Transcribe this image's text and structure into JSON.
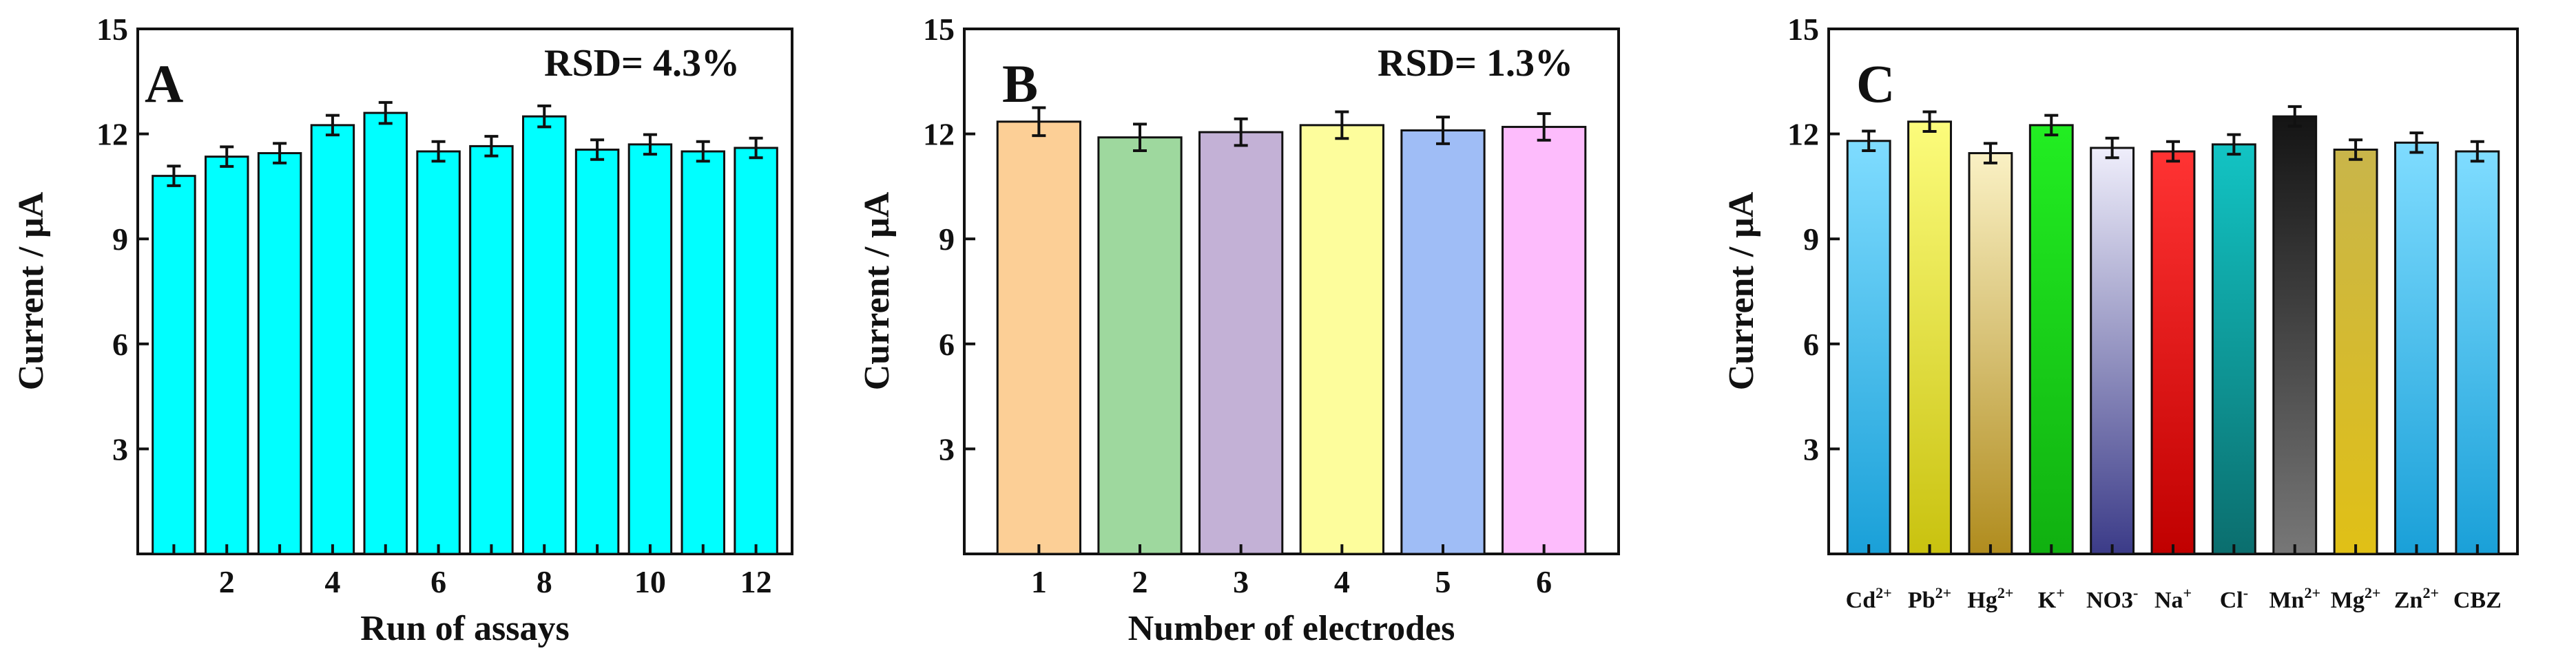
{
  "chart_data": [
    {
      "type": "bar",
      "panel_label": "A",
      "annotation": "RSD= 4.3%",
      "xlabel": "Run of assays",
      "ylabel": "Current / μA",
      "ylim": [
        0,
        15
      ],
      "yticks": [
        3,
        6,
        9,
        12,
        15
      ],
      "categories": [
        "1",
        "2",
        "3",
        "4",
        "5",
        "6",
        "7",
        "8",
        "9",
        "10",
        "11",
        "12"
      ],
      "xtick_labels": [
        "",
        "2",
        "",
        "4",
        "",
        "6",
        "",
        "8",
        "",
        "10",
        "",
        "12"
      ],
      "values": [
        10.8,
        11.35,
        11.45,
        12.25,
        12.6,
        11.5,
        11.65,
        12.5,
        11.55,
        11.7,
        11.5,
        11.6
      ],
      "errors": [
        0.28,
        0.28,
        0.28,
        0.28,
        0.3,
        0.28,
        0.28,
        0.3,
        0.28,
        0.28,
        0.28,
        0.28
      ],
      "colors": [
        "#00ffff",
        "#00ffff",
        "#00ffff",
        "#00ffff",
        "#00ffff",
        "#00ffff",
        "#00ffff",
        "#00ffff",
        "#00ffff",
        "#00ffff",
        "#00ffff",
        "#00ffff"
      ]
    },
    {
      "type": "bar",
      "panel_label": "B",
      "annotation": "RSD= 1.3%",
      "xlabel": "Number of electrodes",
      "ylabel": "Current / μA",
      "ylim": [
        0,
        15
      ],
      "yticks": [
        3,
        6,
        9,
        12,
        15
      ],
      "categories": [
        "1",
        "2",
        "3",
        "4",
        "5",
        "6"
      ],
      "xtick_labels": [
        "1",
        "2",
        "3",
        "4",
        "5",
        "6"
      ],
      "values": [
        12.35,
        11.9,
        12.05,
        12.25,
        12.1,
        12.2
      ],
      "errors": [
        0.4,
        0.38,
        0.38,
        0.38,
        0.38,
        0.38
      ],
      "colors": [
        "#fccf96",
        "#9ed89e",
        "#c3b1d6",
        "#fdfd9c",
        "#9fbdf6",
        "#fdbcfc"
      ]
    },
    {
      "type": "bar",
      "panel_label": "C",
      "ylabel": "Current / μA",
      "ylim": [
        0,
        15
      ],
      "yticks": [
        3,
        6,
        9,
        12,
        15
      ],
      "categories": [
        {
          "base": "Cd",
          "sup": "2+"
        },
        {
          "base": "Pb",
          "sup": "2+"
        },
        {
          "base": "Hg",
          "sup": "2+"
        },
        {
          "base": "K",
          "sup": "+"
        },
        {
          "base": "NO3",
          "sup": "-"
        },
        {
          "base": "Na",
          "sup": "+"
        },
        {
          "base": "Cl",
          "sup": "-"
        },
        {
          "base": "Mn",
          "sup": "2+"
        },
        {
          "base": "Mg",
          "sup": "2+"
        },
        {
          "base": "Zn",
          "sup": "2+"
        },
        {
          "base": "CBZ",
          "sup": ""
        }
      ],
      "values": [
        11.8,
        12.35,
        11.45,
        12.25,
        11.6,
        11.5,
        11.7,
        12.5,
        11.55,
        11.75,
        11.5
      ],
      "errors": [
        0.28,
        0.28,
        0.28,
        0.28,
        0.28,
        0.28,
        0.28,
        0.28,
        0.28,
        0.28,
        0.28
      ],
      "gradients": [
        [
          "#7fdcff",
          "#1aa0d8"
        ],
        [
          "#fcfc7c",
          "#c9c20f"
        ],
        [
          "#faf1c4",
          "#b08c1e"
        ],
        [
          "#22ee22",
          "#10b010"
        ],
        [
          "#efeefb",
          "#3b3b88"
        ],
        [
          "#ff3333",
          "#c00000"
        ],
        [
          "#12c4c4",
          "#0b6e6e"
        ],
        [
          "#141414",
          "#777777"
        ],
        [
          "#c9b54a",
          "#e0c016"
        ],
        [
          "#7fdcff",
          "#1aa0d8"
        ],
        [
          "#7fdcff",
          "#1aa0d8"
        ]
      ]
    }
  ]
}
